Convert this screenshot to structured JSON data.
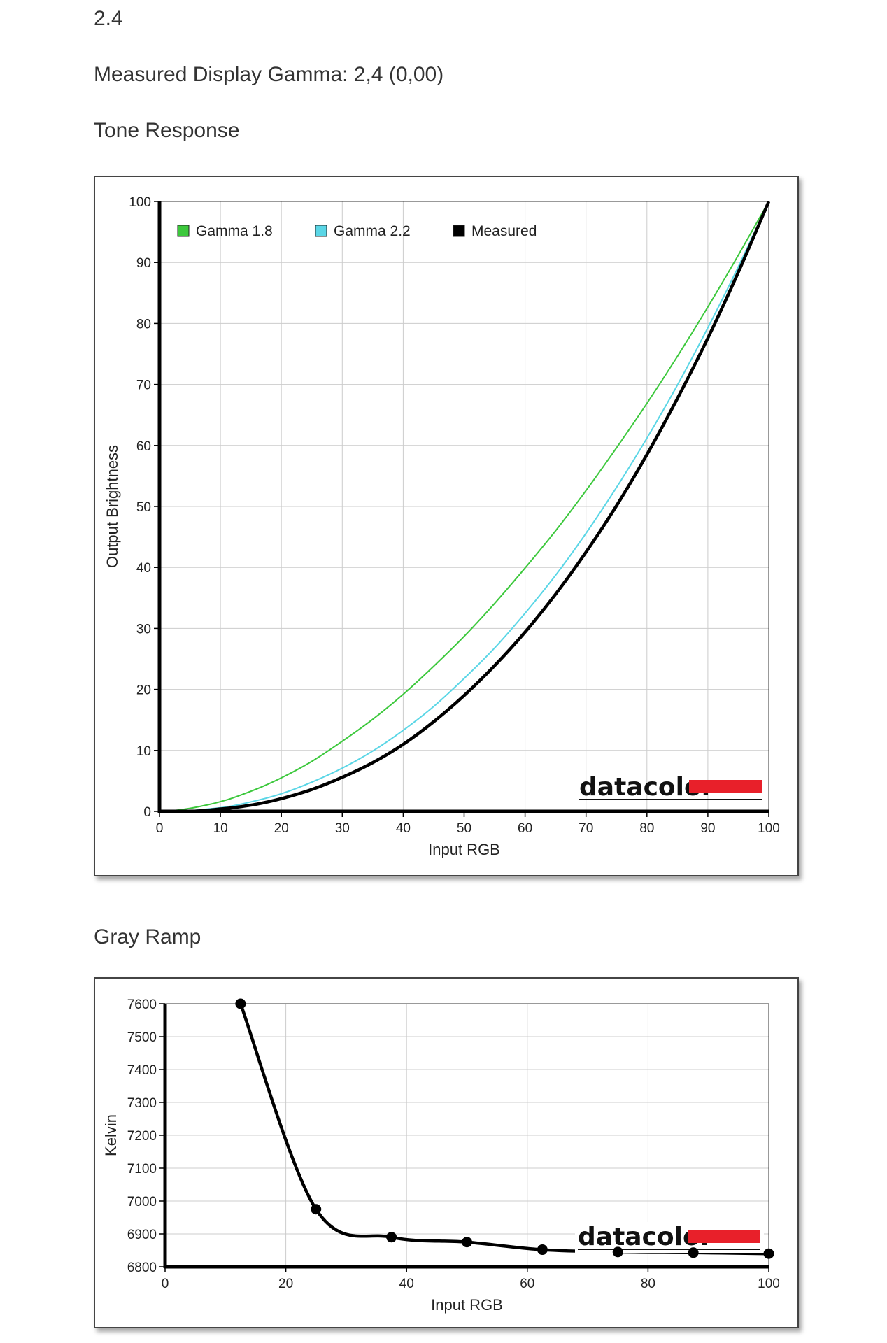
{
  "page": {
    "version": "2.4",
    "measured_gamma": "Measured Display Gamma: 2,4 (0,00)",
    "tone_heading": "Tone Response",
    "gray_heading": "Gray Ramp"
  },
  "colors": {
    "gamma18": "#3cc83c",
    "gamma22": "#5ad6e6",
    "measured": "#000000",
    "grid": "#cccccc",
    "logo_red": "#e8202a"
  },
  "chart_data": [
    {
      "type": "line",
      "title": "",
      "xlabel": "Input RGB",
      "ylabel": "Output Brightness",
      "xlim": [
        0,
        100
      ],
      "ylim": [
        0,
        100
      ],
      "xticks": [
        0,
        10,
        20,
        30,
        40,
        50,
        60,
        70,
        80,
        90,
        100
      ],
      "yticks": [
        0,
        10,
        20,
        30,
        40,
        50,
        60,
        70,
        80,
        90,
        100
      ],
      "grid": true,
      "legend_position": "top-left",
      "logo": "datacolor",
      "series": [
        {
          "name": "Gamma 1.8",
          "color": "#3cc83c",
          "x": [
            0,
            2,
            5,
            8,
            10,
            12,
            16,
            20,
            25,
            30,
            35,
            40,
            45,
            50,
            55,
            60,
            65,
            70,
            75,
            80,
            85,
            90,
            95,
            100
          ],
          "y": [
            0,
            0.1,
            0.5,
            1.1,
            1.6,
            2.2,
            3.7,
            5.5,
            8.2,
            11.5,
            15.1,
            19.2,
            23.8,
            28.7,
            34.1,
            39.9,
            46.0,
            52.6,
            59.6,
            66.9,
            74.6,
            82.7,
            91.2,
            100
          ]
        },
        {
          "name": "Gamma 2.2",
          "color": "#5ad6e6",
          "x": [
            0,
            2,
            5,
            8,
            10,
            12,
            16,
            20,
            25,
            30,
            35,
            40,
            45,
            50,
            55,
            60,
            65,
            70,
            75,
            80,
            85,
            90,
            95,
            100
          ],
          "y": [
            0,
            0,
            0.1,
            0.4,
            0.6,
            0.9,
            1.8,
            2.9,
            4.8,
            7.1,
            9.9,
            13.3,
            17.2,
            21.8,
            26.8,
            32.5,
            38.7,
            45.6,
            53.1,
            61.2,
            69.9,
            79.3,
            89.3,
            100
          ]
        },
        {
          "name": "Measured",
          "color": "#000000",
          "x": [
            0,
            2,
            5,
            8,
            10,
            12,
            16,
            20,
            25,
            30,
            35,
            40,
            45,
            50,
            55,
            60,
            65,
            70,
            75,
            80,
            85,
            90,
            95,
            100
          ],
          "y": [
            0,
            0,
            0,
            0.2,
            0.4,
            0.6,
            1.2,
            2.1,
            3.6,
            5.6,
            8.0,
            11.0,
            14.7,
            19.0,
            23.9,
            29.4,
            35.6,
            42.5,
            50.1,
            58.5,
            67.7,
            77.6,
            88.4,
            100
          ]
        }
      ]
    },
    {
      "type": "line",
      "title": "",
      "xlabel": "Input RGB",
      "ylabel": "Kelvin",
      "xlim": [
        0,
        100
      ],
      "ylim": [
        6800,
        7600
      ],
      "xticks": [
        0,
        20,
        40,
        60,
        80,
        100
      ],
      "yticks": [
        6800,
        6900,
        7000,
        7100,
        7200,
        7300,
        7400,
        7500,
        7600
      ],
      "grid": true,
      "logo": "datacolor",
      "series": [
        {
          "name": "",
          "color": "#000000",
          "x": [
            12.5,
            25,
            37.5,
            50,
            62.5,
            75,
            87.5,
            100
          ],
          "y": [
            7600,
            6975,
            6890,
            6875,
            6852,
            6845,
            6843,
            6840
          ]
        }
      ]
    }
  ]
}
